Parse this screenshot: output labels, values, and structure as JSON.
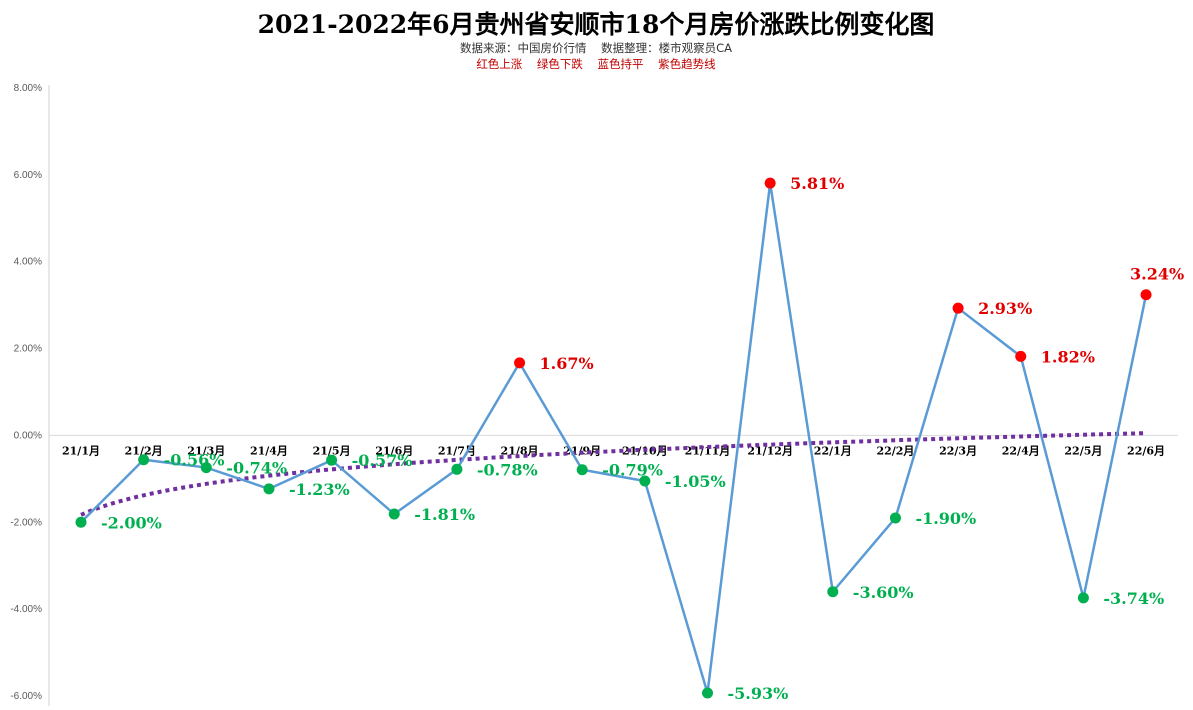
{
  "chart_data": {
    "type": "line",
    "title": "2021-2022年6月贵州省安顺市18个月房价涨跌比例变化图",
    "subtitle": "数据来源：中国房价行情    数据整理：楼市观察员CA",
    "legend_text": "红色上涨    绿色下跌    蓝色持平    紫色趋势线",
    "categories": [
      "21/1月",
      "21/2月",
      "21/3月",
      "21/4月",
      "21/5月",
      "21/6月",
      "21/7月",
      "21/8月",
      "21/9月",
      "21/10月",
      "21/11月",
      "21/12月",
      "22/1月",
      "22/2月",
      "22/3月",
      "22/4月",
      "22/5月",
      "22/6月"
    ],
    "values": [
      -2.0,
      -0.56,
      -0.74,
      -1.23,
      -0.57,
      -1.81,
      -0.78,
      1.67,
      -0.79,
      -1.05,
      -5.93,
      5.81,
      -3.6,
      -1.9,
      2.93,
      1.82,
      -3.74,
      3.24
    ],
    "data_labels": [
      "-2.00%",
      "-0.56%",
      "-0.74%",
      "-1.23%",
      "-0.57%",
      "-1.81%",
      "-0.78%",
      "1.67%",
      "-0.79%",
      "-1.05%",
      "-5.93%",
      "5.81%",
      "-3.60%",
      "-1.90%",
      "2.93%",
      "1.82%",
      "-3.74%",
      "3.24%"
    ],
    "yticks": [
      8,
      6,
      4,
      2,
      0,
      -2,
      -4,
      -6
    ],
    "ytick_labels": [
      "8.00%",
      "6.00%",
      "4.00%",
      "2.00%",
      "0.00%",
      "-2.00%",
      "-4.00%",
      "-6.00%"
    ],
    "ylim": [
      -6,
      8
    ],
    "trendline": "logarithmic",
    "grid": false,
    "colors": {
      "line": "#5b9bd5",
      "up": "#ff0000",
      "down": "#00b050",
      "trend": "#7030a0",
      "up_label": "#e00000",
      "down_label": "#00b050"
    }
  }
}
